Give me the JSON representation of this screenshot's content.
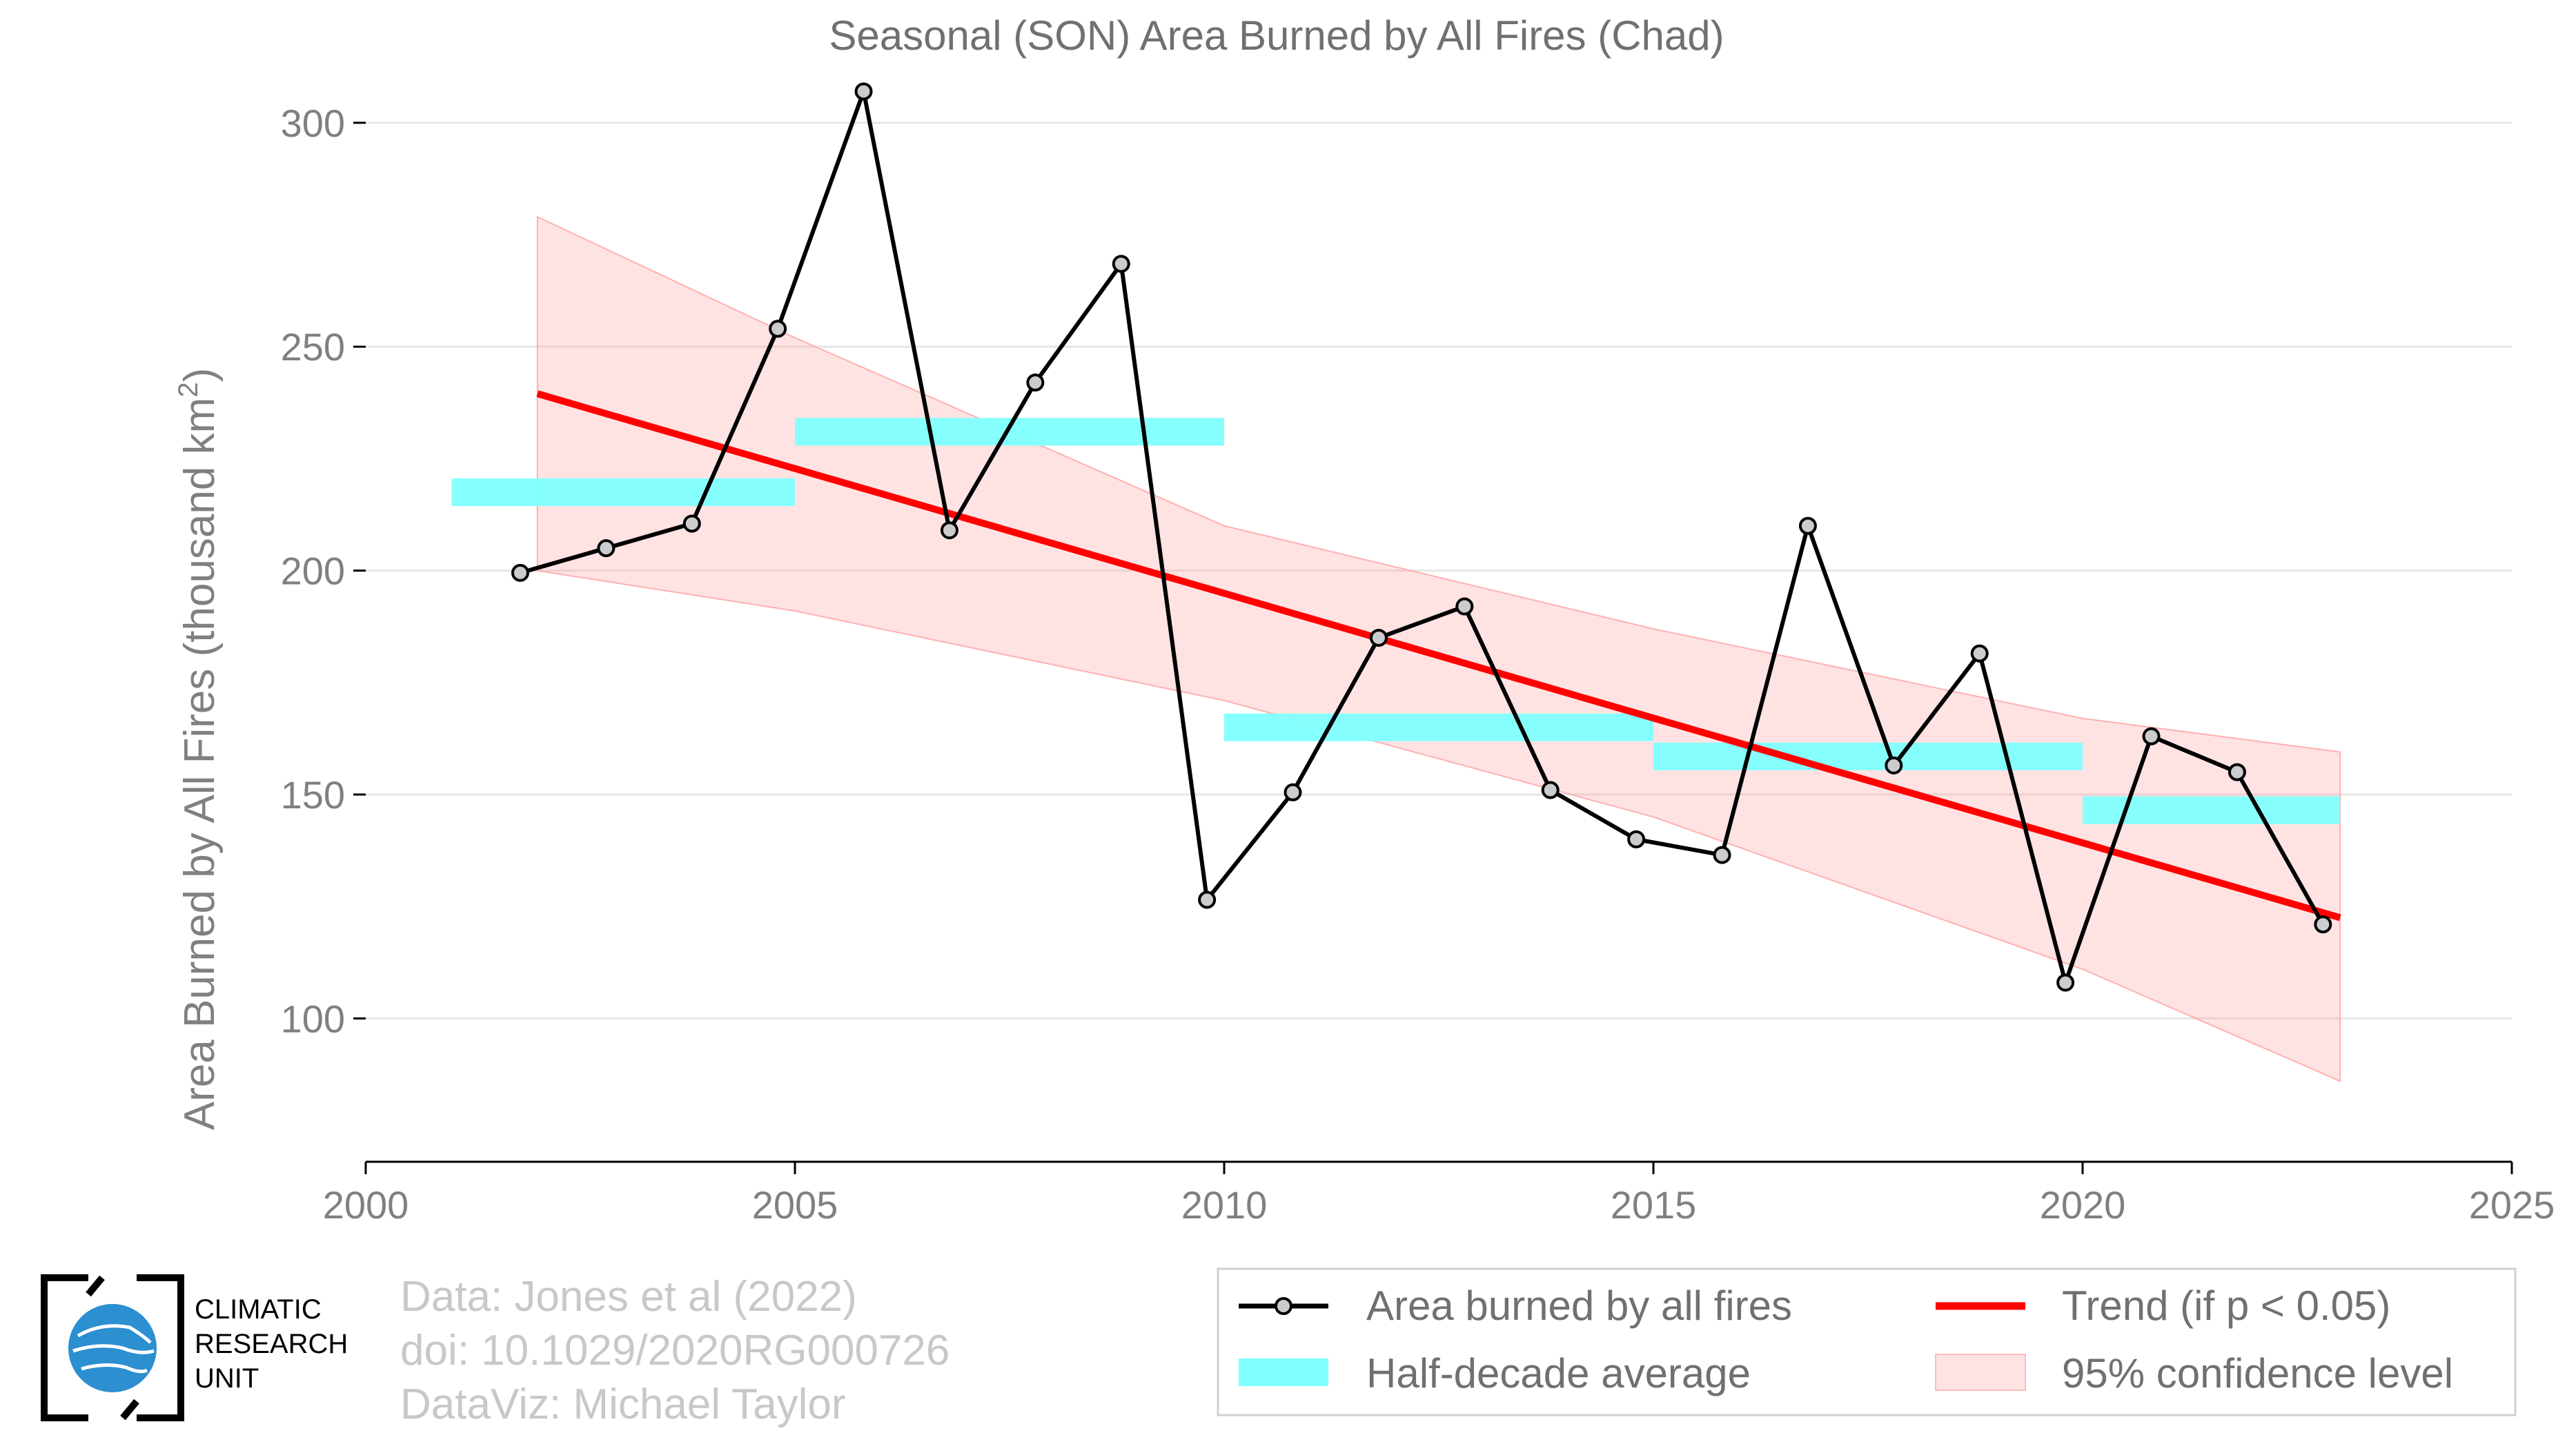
{
  "chart_data": {
    "type": "line",
    "title": "Seasonal (SON) Area Burned by All Fires (Chad)",
    "ylabel": "Area Burned by All Fires (thousand km",
    "ylabel_sup": "2",
    "ylabel_tail": ")",
    "xlabel": "",
    "xlim": [
      2000,
      2025
    ],
    "ylim": [
      68,
      312
    ],
    "xticks": [
      2000,
      2005,
      2010,
      2015,
      2020,
      2025
    ],
    "yticks": [
      100,
      150,
      200,
      250,
      300
    ],
    "grid": "horizontal",
    "series": [
      {
        "name": "Area burned by all fires",
        "color": "#000000",
        "x": [
          2002,
          2003,
          2004,
          2005,
          2006,
          2007,
          2008,
          2009,
          2010,
          2011,
          2012,
          2013,
          2014,
          2015,
          2016,
          2017,
          2018,
          2019,
          2020,
          2021,
          2022,
          2023
        ],
        "y": [
          199.5,
          205,
          210.5,
          254,
          307,
          209,
          242,
          268.5,
          126.5,
          150.5,
          185,
          192,
          151,
          140,
          136.5,
          210,
          156.5,
          181.5,
          108,
          163,
          155,
          121
        ]
      }
    ],
    "half_decade": {
      "name": "Half-decade average",
      "color": "#80ffff",
      "segments": [
        {
          "x0": 2001,
          "x1": 2005,
          "y": 217.5
        },
        {
          "x0": 2005,
          "x1": 2010,
          "y": 231
        },
        {
          "x0": 2010,
          "x1": 2015,
          "y": 165
        },
        {
          "x0": 2015,
          "x1": 2020,
          "y": 158.5
        },
        {
          "x0": 2020,
          "x1": 2023,
          "y": 146.5
        }
      ]
    },
    "trend": {
      "name": "Trend (if p < 0.05)",
      "color": "#ff0000",
      "x": [
        2002,
        2023
      ],
      "y": [
        239.5,
        122.5
      ]
    },
    "confidence": {
      "name": "95% confidence level",
      "color": "#ffaaaa",
      "x": [
        2002,
        2005,
        2010,
        2015,
        2020,
        2023
      ],
      "upper": [
        279,
        252,
        210,
        187,
        167,
        159.5
      ],
      "lower": [
        200,
        191,
        171,
        145,
        111,
        86
      ]
    },
    "legend_position": "bottom-right"
  },
  "credits": {
    "line1": "Data: Jones et al (2022)",
    "line2": "doi: 10.1029/2020RG000726",
    "line3": "DataViz: Michael Taylor"
  },
  "logo": {
    "line1": "CLIMATIC",
    "line2": "RESEARCH",
    "line3": "UNIT",
    "color": "#2b8fd0"
  }
}
